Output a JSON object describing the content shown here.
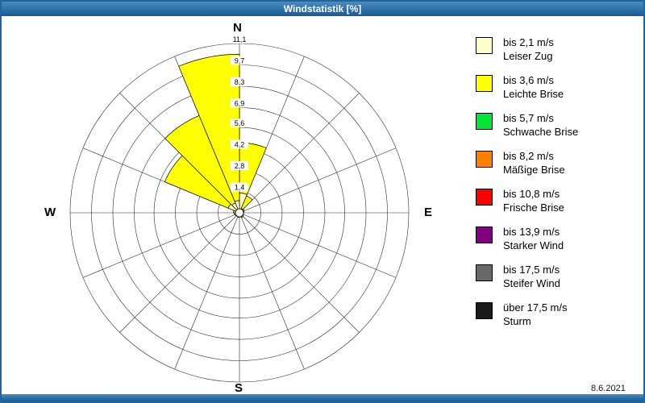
{
  "window": {
    "title": "Windstatistik [%]"
  },
  "compass": {
    "north": "N",
    "east": "E",
    "south": "S",
    "west": "W"
  },
  "footer": {
    "date": "8.6.2021"
  },
  "colors": {
    "titlebar": "#175a95",
    "grid": "#2a2a2a",
    "wedge_outline": "#000000"
  },
  "legend": {
    "position": "right",
    "items": [
      {
        "color": "#ffffc8",
        "line1": "bis 2,1 m/s",
        "line2": "Leiser Zug"
      },
      {
        "color": "#ffff00",
        "line1": "bis 3,6 m/s",
        "line2": "Leichte Brise"
      },
      {
        "color": "#00e632",
        "line1": "bis 5,7 m/s",
        "line2": "Schwache Brise"
      },
      {
        "color": "#ff8000",
        "line1": "bis 8,2 m/s",
        "line2": "Mäßige Brise"
      },
      {
        "color": "#ff0000",
        "line1": "bis 10,8 m/s",
        "line2": "Frische Brise"
      },
      {
        "color": "#800080",
        "line1": "bis 13,9 m/s",
        "line2": "Starker Wind"
      },
      {
        "color": "#686868",
        "line1": "bis 17,5 m/s",
        "line2": "Steifer Wind"
      },
      {
        "color": "#1a1a1a",
        "line1": "über 17,5 m/s",
        "line2": "Sturm"
      }
    ]
  },
  "chart_data": {
    "type": "windrose",
    "title": "Windstatistik [%]",
    "unit": "%",
    "grid": true,
    "sector_span_deg": 22.5,
    "sector_count": 16,
    "rmax": 11.1,
    "radial_ticks": [
      1.4,
      2.8,
      4.2,
      5.6,
      6.9,
      8.3,
      9.7,
      11.1
    ],
    "radial_tick_labels": [
      "1,4",
      "2,8",
      "4,2",
      "5,6",
      "6,9",
      "8,3",
      "9,7",
      "11,1"
    ],
    "sector_start_angles_deg": [
      0,
      22.5,
      45,
      67.5,
      90,
      112.5,
      135,
      157.5,
      180,
      202.5,
      225,
      247.5,
      270,
      292.5,
      315,
      337.5
    ],
    "series": [
      {
        "name": "bis 2,1 m/s",
        "color": "#ffffc8",
        "values": [
          1.3,
          0.3,
          0.15,
          0.15,
          0.1,
          0.15,
          0.15,
          0.1,
          0.15,
          0.1,
          0.15,
          0.15,
          0.2,
          0.8,
          0.7,
          0.8
        ]
      },
      {
        "name": "bis 3,6 m/s",
        "color": "#ffff00",
        "values": [
          3.3,
          0.9,
          0.2,
          0.15,
          0.1,
          0.15,
          0.2,
          0.15,
          0.15,
          0.1,
          0.15,
          0.2,
          0.2,
          4.5,
          6.2,
          9.6
        ]
      },
      {
        "name": "bis 5,7 m/s",
        "color": "#00e632",
        "values": [
          0,
          0,
          0,
          0,
          0,
          0,
          0,
          0,
          0,
          0,
          0,
          0,
          0,
          0,
          0,
          0
        ]
      },
      {
        "name": "bis 8,2 m/s",
        "color": "#ff8000",
        "values": [
          0,
          0,
          0,
          0,
          0,
          0,
          0,
          0,
          0,
          0,
          0,
          0,
          0,
          0,
          0,
          0
        ]
      },
      {
        "name": "bis 10,8 m/s",
        "color": "#ff0000",
        "values": [
          0,
          0,
          0,
          0,
          0,
          0,
          0,
          0,
          0,
          0,
          0,
          0,
          0,
          0,
          0,
          0
        ]
      },
      {
        "name": "bis 13,9 m/s",
        "color": "#800080",
        "values": [
          0,
          0,
          0,
          0,
          0,
          0,
          0,
          0,
          0,
          0,
          0,
          0,
          0,
          0,
          0,
          0
        ]
      },
      {
        "name": "bis 17,5 m/s",
        "color": "#686868",
        "values": [
          0,
          0,
          0,
          0,
          0,
          0,
          0,
          0,
          0,
          0,
          0,
          0,
          0,
          0,
          0,
          0
        ]
      },
      {
        "name": "über 17,5 m/s",
        "color": "#1a1a1a",
        "values": [
          0,
          0,
          0,
          0,
          0,
          0,
          0,
          0,
          0,
          0,
          0,
          0,
          0,
          0,
          0,
          0
        ]
      }
    ]
  }
}
